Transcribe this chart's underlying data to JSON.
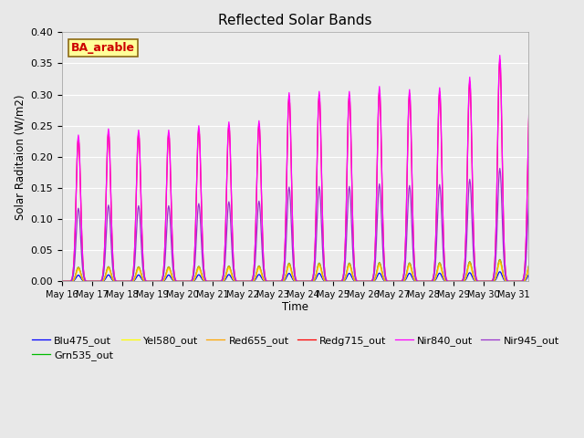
{
  "title": "Reflected Solar Bands",
  "xlabel": "Time",
  "ylabel": "Solar Raditaion (W/m2)",
  "annotation_text": "BA_arable",
  "annotation_color": "#CC0000",
  "annotation_bg": "#FFFF99",
  "annotation_border": "#8B6914",
  "series": [
    {
      "label": "Blu475_out",
      "color": "#0000FF",
      "peak_ratio": 0.043
    },
    {
      "label": "Grn535_out",
      "color": "#00BB00",
      "peak_ratio": 0.097
    },
    {
      "label": "Yel580_out",
      "color": "#FFFF00",
      "peak_ratio": 0.082
    },
    {
      "label": "Red655_out",
      "color": "#FFA500",
      "peak_ratio": 0.095
    },
    {
      "label": "Redg715_out",
      "color": "#FF0000",
      "peak_ratio": 0.98
    },
    {
      "label": "Nir840_out",
      "color": "#FF00FF",
      "peak_ratio": 1.0
    },
    {
      "label": "Nir945_out",
      "color": "#9933CC",
      "peak_ratio": 0.5
    }
  ],
  "nir840_peaks": [
    0.235,
    0.245,
    0.243,
    0.243,
    0.25,
    0.256,
    0.258,
    0.303,
    0.305,
    0.305,
    0.313,
    0.308,
    0.311,
    0.328,
    0.363,
    0.3
  ],
  "ylim": [
    0.0,
    0.4
  ],
  "yticks": [
    0.0,
    0.05,
    0.1,
    0.15,
    0.2,
    0.25,
    0.3,
    0.35,
    0.4
  ],
  "background_color": "#E8E8E8",
  "plot_bg": "#EBEBEB",
  "grid_color": "#FFFFFF",
  "figsize": [
    6.4,
    4.8
  ],
  "dpi": 100
}
